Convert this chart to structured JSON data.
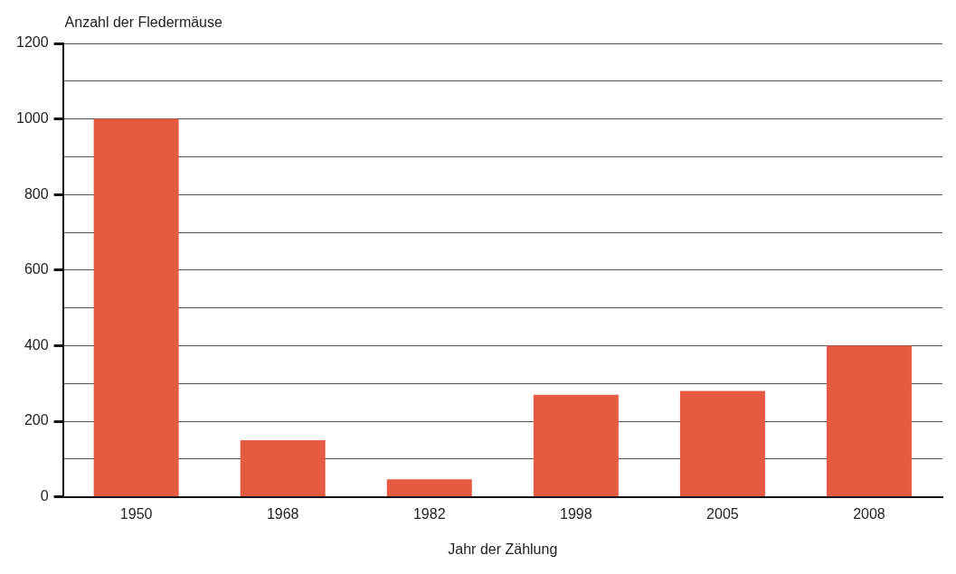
{
  "chart_data": {
    "type": "bar",
    "xlabel": "Jahr der Zählung",
    "ylabel": "Anzahl der Fledermäuse",
    "categories": [
      "1950",
      "1968",
      "1982",
      "1998",
      "2005",
      "2008"
    ],
    "values": [
      1000,
      150,
      46,
      270,
      280,
      400
    ],
    "color": "#e55a40",
    "ylim": [
      0,
      1200
    ],
    "yticks": [
      0,
      {
        "value": 100,
        "label": null
      },
      200,
      {
        "value": 300,
        "label": null
      },
      400,
      {
        "value": 500,
        "label": null
      },
      600,
      {
        "value": 700,
        "label": null
      },
      800,
      {
        "value": 900,
        "label": null
      },
      1000,
      {
        "value": 1100,
        "label": null
      },
      1200
    ],
    "grid": "y",
    "legend": false
  }
}
